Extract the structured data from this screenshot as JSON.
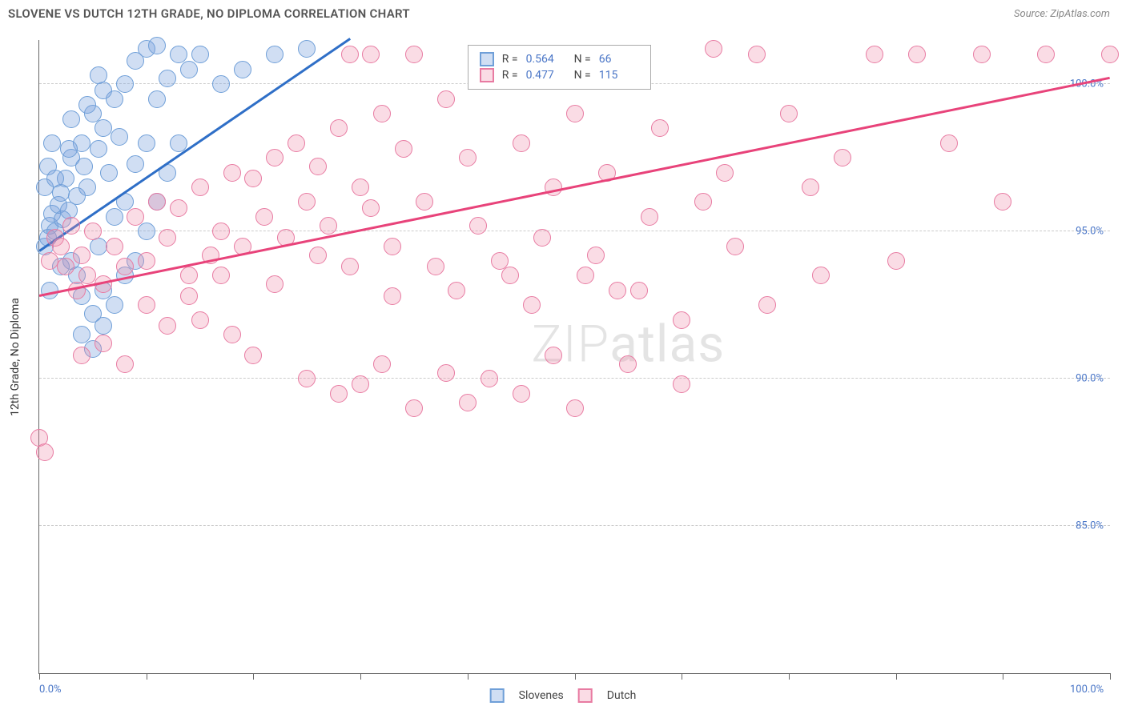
{
  "header": {
    "title": "SLOVENE VS DUTCH 12TH GRADE, NO DIPLOMA CORRELATION CHART",
    "source": "Source: ZipAtlas.com"
  },
  "chart": {
    "type": "scatter",
    "y_axis_title": "12th Grade, No Diploma",
    "xlim": [
      0,
      100
    ],
    "ylim": [
      80,
      101.5
    ],
    "y_ticks": [
      85.0,
      90.0,
      95.0,
      100.0
    ],
    "y_tick_labels": [
      "85.0%",
      "90.0%",
      "95.0%",
      "100.0%"
    ],
    "x_ticks": [
      0,
      10,
      20,
      30,
      40,
      50,
      60,
      70,
      80,
      90,
      100
    ],
    "x_min_label": "0.0%",
    "x_max_label": "100.0%",
    "background_color": "#ffffff",
    "grid_color": "#cccccc",
    "axis_color": "#666666",
    "label_color": "#4a76c7",
    "watermark": "ZIPatlas",
    "series": [
      {
        "name": "Slovenes",
        "fill": "rgba(120,160,220,0.35)",
        "stroke": "#6f9fd8",
        "trend_color": "#2f6fc7",
        "trend": {
          "x1": 0,
          "y1": 94.3,
          "x2": 29,
          "y2": 101.5
        },
        "marker_radius": 11,
        "points": [
          [
            0.5,
            94.5
          ],
          [
            0.8,
            94.8
          ],
          [
            1,
            95.2
          ],
          [
            1.2,
            95.6
          ],
          [
            1.5,
            95.0
          ],
          [
            1.8,
            95.9
          ],
          [
            2,
            96.3
          ],
          [
            2.2,
            95.4
          ],
          [
            2.5,
            96.8
          ],
          [
            2.8,
            95.7
          ],
          [
            3,
            97.5
          ],
          [
            3.5,
            96.2
          ],
          [
            4,
            98.0
          ],
          [
            4.2,
            97.2
          ],
          [
            4.5,
            96.5
          ],
          [
            5,
            99.0
          ],
          [
            5.5,
            97.8
          ],
          [
            6,
            98.5
          ],
          [
            6.5,
            97.0
          ],
          [
            7,
            99.5
          ],
          [
            7.5,
            98.2
          ],
          [
            8,
            100.0
          ],
          [
            9,
            100.8
          ],
          [
            10,
            101.2
          ],
          [
            3,
            94.0
          ],
          [
            3.5,
            93.5
          ],
          [
            4,
            92.8
          ],
          [
            5,
            92.2
          ],
          [
            6,
            93.0
          ],
          [
            5.5,
            94.5
          ],
          [
            7,
            95.5
          ],
          [
            8,
            96.0
          ],
          [
            9,
            97.3
          ],
          [
            10,
            98.0
          ],
          [
            11,
            99.5
          ],
          [
            12,
            100.2
          ],
          [
            13,
            101.0
          ],
          [
            14,
            100.5
          ],
          [
            15,
            101.0
          ],
          [
            8,
            93.5
          ],
          [
            9,
            94.0
          ],
          [
            10,
            95.0
          ],
          [
            11,
            96.0
          ],
          [
            12,
            97.0
          ],
          [
            13,
            98.0
          ],
          [
            4,
            91.5
          ],
          [
            5,
            91.0
          ],
          [
            6,
            91.8
          ],
          [
            7,
            92.5
          ],
          [
            19,
            100.5
          ],
          [
            22,
            101.0
          ],
          [
            25,
            101.2
          ],
          [
            1,
            93.0
          ],
          [
            2,
            93.8
          ],
          [
            0.5,
            96.5
          ],
          [
            0.8,
            97.2
          ],
          [
            1.2,
            98.0
          ],
          [
            6,
            99.8
          ],
          [
            17,
            100.0
          ],
          [
            3,
            98.8
          ],
          [
            4.5,
            99.3
          ],
          [
            2.8,
            97.8
          ],
          [
            1.5,
            96.8
          ],
          [
            5.5,
            100.3
          ],
          [
            11,
            101.3
          ]
        ]
      },
      {
        "name": "Dutch",
        "fill": "rgba(240,140,170,0.30)",
        "stroke": "#e87ba2",
        "trend_color": "#e8437a",
        "trend": {
          "x1": 0,
          "y1": 92.8,
          "x2": 100,
          "y2": 100.2
        },
        "marker_radius": 11,
        "points": [
          [
            0,
            88.0
          ],
          [
            0.5,
            87.5
          ],
          [
            1,
            94.0
          ],
          [
            1.5,
            94.8
          ],
          [
            2,
            94.5
          ],
          [
            2.5,
            93.8
          ],
          [
            3,
            95.2
          ],
          [
            3.5,
            93.0
          ],
          [
            4,
            94.2
          ],
          [
            4.5,
            93.5
          ],
          [
            5,
            95.0
          ],
          [
            6,
            93.2
          ],
          [
            7,
            94.5
          ],
          [
            8,
            93.8
          ],
          [
            9,
            95.5
          ],
          [
            10,
            94.0
          ],
          [
            11,
            96.0
          ],
          [
            12,
            94.8
          ],
          [
            13,
            95.8
          ],
          [
            14,
            93.5
          ],
          [
            15,
            96.5
          ],
          [
            16,
            94.2
          ],
          [
            17,
            95.0
          ],
          [
            18,
            97.0
          ],
          [
            19,
            94.5
          ],
          [
            20,
            96.8
          ],
          [
            21,
            95.5
          ],
          [
            22,
            97.5
          ],
          [
            23,
            94.8
          ],
          [
            24,
            98.0
          ],
          [
            25,
            96.0
          ],
          [
            26,
            97.2
          ],
          [
            27,
            95.2
          ],
          [
            28,
            98.5
          ],
          [
            29,
            93.8
          ],
          [
            30,
            96.5
          ],
          [
            32,
            99.0
          ],
          [
            33,
            94.5
          ],
          [
            34,
            97.8
          ],
          [
            35,
            101.0
          ],
          [
            36,
            96.0
          ],
          [
            38,
            99.5
          ],
          [
            39,
            93.0
          ],
          [
            40,
            97.5
          ],
          [
            42,
            100.5
          ],
          [
            43,
            94.0
          ],
          [
            45,
            98.0
          ],
          [
            46,
            92.5
          ],
          [
            48,
            96.5
          ],
          [
            50,
            99.0
          ],
          [
            51,
            93.5
          ],
          [
            53,
            97.0
          ],
          [
            55,
            101.0
          ],
          [
            56,
            93.0
          ],
          [
            58,
            98.5
          ],
          [
            60,
            92.0
          ],
          [
            62,
            96.0
          ],
          [
            63,
            101.2
          ],
          [
            65,
            94.5
          ],
          [
            68,
            92.5
          ],
          [
            70,
            99.0
          ],
          [
            72,
            96.5
          ],
          [
            75,
            97.5
          ],
          [
            78,
            101.0
          ],
          [
            80,
            94.0
          ],
          [
            82,
            101.0
          ],
          [
            85,
            98.0
          ],
          [
            88,
            101.0
          ],
          [
            90,
            96.0
          ],
          [
            94,
            101.0
          ],
          [
            100,
            101.0
          ],
          [
            15,
            92.0
          ],
          [
            18,
            91.5
          ],
          [
            20,
            90.8
          ],
          [
            25,
            90.0
          ],
          [
            28,
            89.5
          ],
          [
            30,
            89.8
          ],
          [
            32,
            90.5
          ],
          [
            35,
            89.0
          ],
          [
            38,
            90.2
          ],
          [
            40,
            89.2
          ],
          [
            42,
            90.0
          ],
          [
            45,
            89.5
          ],
          [
            48,
            90.8
          ],
          [
            50,
            89.0
          ],
          [
            55,
            90.5
          ],
          [
            60,
            89.8
          ],
          [
            22,
            93.2
          ],
          [
            26,
            94.2
          ],
          [
            31,
            95.8
          ],
          [
            37,
            93.8
          ],
          [
            41,
            95.2
          ],
          [
            47,
            94.8
          ],
          [
            52,
            94.2
          ],
          [
            57,
            95.5
          ],
          [
            10,
            92.5
          ],
          [
            12,
            91.8
          ],
          [
            14,
            92.8
          ],
          [
            17,
            93.5
          ],
          [
            8,
            90.5
          ],
          [
            6,
            91.2
          ],
          [
            4,
            90.8
          ],
          [
            33,
            92.8
          ],
          [
            44,
            93.5
          ],
          [
            54,
            93.0
          ],
          [
            64,
            97.0
          ],
          [
            67,
            101.0
          ],
          [
            73,
            93.5
          ],
          [
            29,
            101.0
          ],
          [
            31,
            101.0
          ]
        ]
      }
    ],
    "legend": {
      "rows": [
        {
          "swatch_fill": "rgba(120,160,220,0.35)",
          "swatch_stroke": "#6f9fd8",
          "r_label": "R =",
          "r_val": "0.564",
          "n_label": "N =",
          "n_val": "66"
        },
        {
          "swatch_fill": "rgba(240,140,170,0.30)",
          "swatch_stroke": "#e87ba2",
          "r_label": "R =",
          "r_val": "0.477",
          "n_label": "N =",
          "n_val": "115"
        }
      ]
    },
    "bottom_legend": [
      {
        "swatch_fill": "rgba(120,160,220,0.35)",
        "swatch_stroke": "#6f9fd8",
        "label": "Slovenes"
      },
      {
        "swatch_fill": "rgba(240,140,170,0.30)",
        "swatch_stroke": "#e87ba2",
        "label": "Dutch"
      }
    ]
  }
}
